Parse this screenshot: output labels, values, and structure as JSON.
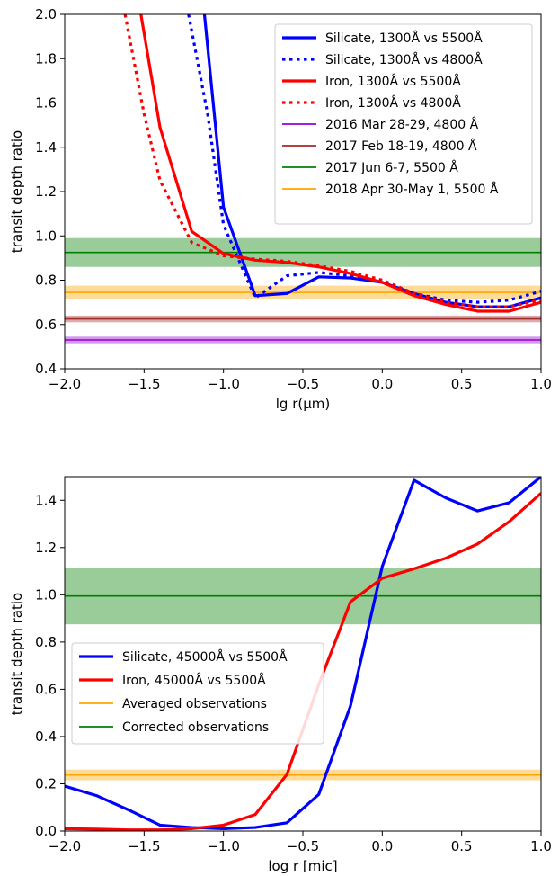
{
  "chart_data": [
    {
      "type": "line",
      "xlabel": "lg r(μm)",
      "ylabel": "transit depth ratio",
      "xlim": [
        -2.0,
        1.0
      ],
      "ylim": [
        0.4,
        2.0
      ],
      "x_ticks": [
        "−2.0",
        "−1.5",
        "−1.0",
        "−0.5",
        "0.0",
        "0.5",
        "1.0"
      ],
      "y_ticks": [
        "0.4",
        "0.6",
        "0.8",
        "1.0",
        "1.2",
        "1.4",
        "1.6",
        "1.8",
        "2.0"
      ],
      "legend_position": "top-right",
      "series": [
        {
          "name": "Silicate, 1300Å vs 5500Å",
          "color": "#0000ff",
          "style": "solid",
          "x": [
            -1.12,
            -1.0,
            -0.8,
            -0.6,
            -0.4,
            -0.2,
            0.0,
            0.2,
            0.4,
            0.6,
            0.8,
            1.0
          ],
          "y": [
            2.0,
            1.13,
            0.73,
            0.74,
            0.815,
            0.81,
            0.79,
            0.74,
            0.7,
            0.68,
            0.68,
            0.72
          ]
        },
        {
          "name": "Silicate, 1300Å vs 4800Å",
          "color": "#0000ff",
          "style": "dotted",
          "x": [
            -1.22,
            -1.1,
            -1.0,
            -0.8,
            -0.6,
            -0.4,
            -0.2,
            0.0,
            0.2,
            0.4,
            0.6,
            0.8,
            1.0
          ],
          "y": [
            2.0,
            1.55,
            1.05,
            0.72,
            0.82,
            0.835,
            0.82,
            0.8,
            0.74,
            0.71,
            0.7,
            0.71,
            0.75
          ]
        },
        {
          "name": "Iron, 1300Å vs 5500Å",
          "color": "#ff0000",
          "style": "solid",
          "x": [
            -1.52,
            -1.4,
            -1.2,
            -1.0,
            -0.8,
            -0.6,
            -0.4,
            -0.2,
            0.0,
            0.2,
            0.4,
            0.6,
            0.8,
            1.0
          ],
          "y": [
            2.0,
            1.49,
            1.02,
            0.92,
            0.89,
            0.88,
            0.86,
            0.83,
            0.79,
            0.73,
            0.69,
            0.66,
            0.66,
            0.7
          ]
        },
        {
          "name": "Iron, 1300Å vs 4800Å",
          "color": "#ff0000",
          "style": "dotted",
          "x": [
            -1.62,
            -1.5,
            -1.4,
            -1.2,
            -1.0,
            -0.8,
            -0.6,
            -0.4,
            -0.2,
            0.0,
            0.2,
            0.4,
            0.6,
            0.8,
            1.0
          ],
          "y": [
            2.0,
            1.55,
            1.25,
            0.97,
            0.91,
            0.895,
            0.885,
            0.865,
            0.84,
            0.8,
            0.74,
            0.7,
            0.68,
            0.68,
            0.71
          ]
        }
      ],
      "bands": [
        {
          "name": "2016 Mar 28-29, 4800 Å",
          "color": "#9400d3",
          "center": 0.53,
          "lower": 0.515,
          "upper": 0.545
        },
        {
          "name": "2017 Feb 18-19, 4800 Å",
          "color": "#a52a2a",
          "center": 0.625,
          "lower": 0.61,
          "upper": 0.64
        },
        {
          "name": "2017 Jun 6-7, 5500 Å",
          "color": "#008000",
          "center": 0.925,
          "lower": 0.86,
          "upper": 0.99
        },
        {
          "name": "2018 Apr 30-May 1, 5500 Å",
          "color": "#ffa500",
          "center": 0.745,
          "lower": 0.715,
          "upper": 0.775
        }
      ]
    },
    {
      "type": "line",
      "xlabel": "log r [mic]",
      "ylabel": "transit depth ratio",
      "xlim": [
        -2.0,
        1.0
      ],
      "ylim": [
        0.0,
        1.5
      ],
      "x_ticks": [
        "−2.0",
        "−1.5",
        "−1.0",
        "−0.5",
        "0.0",
        "0.5",
        "1.0"
      ],
      "y_ticks": [
        "0.0",
        "0.2",
        "0.4",
        "0.6",
        "0.8",
        "1.0",
        "1.2",
        "1.4"
      ],
      "legend_position": "center-left",
      "series": [
        {
          "name": "Silicate, 45000Å vs 5500Å",
          "color": "#0000ff",
          "style": "solid",
          "x": [
            -2.0,
            -1.8,
            -1.6,
            -1.4,
            -1.2,
            -1.0,
            -0.8,
            -0.6,
            -0.4,
            -0.2,
            0.0,
            0.2,
            0.4,
            0.6,
            0.8,
            1.0
          ],
          "y": [
            0.19,
            0.15,
            0.09,
            0.025,
            0.015,
            0.01,
            0.015,
            0.035,
            0.155,
            0.53,
            1.12,
            1.485,
            1.41,
            1.355,
            1.39,
            1.5
          ]
        },
        {
          "name": "Iron, 45000Å vs 5500Å",
          "color": "#ff0000",
          "style": "solid",
          "x": [
            -2.0,
            -1.8,
            -1.6,
            -1.4,
            -1.2,
            -1.0,
            -0.8,
            -0.6,
            -0.4,
            -0.2,
            0.0,
            0.2,
            0.4,
            0.6,
            0.8,
            1.0
          ],
          "y": [
            0.01,
            0.008,
            0.005,
            0.005,
            0.01,
            0.025,
            0.07,
            0.24,
            0.62,
            0.97,
            1.07,
            1.11,
            1.155,
            1.215,
            1.31,
            1.43
          ]
        }
      ],
      "bands": [
        {
          "name": "Averaged observations",
          "color": "#ffa500",
          "center": 0.237,
          "lower": 0.215,
          "upper": 0.26
        },
        {
          "name": "Corrected observations",
          "color": "#008000",
          "center": 0.995,
          "lower": 0.875,
          "upper": 1.115
        }
      ]
    }
  ]
}
